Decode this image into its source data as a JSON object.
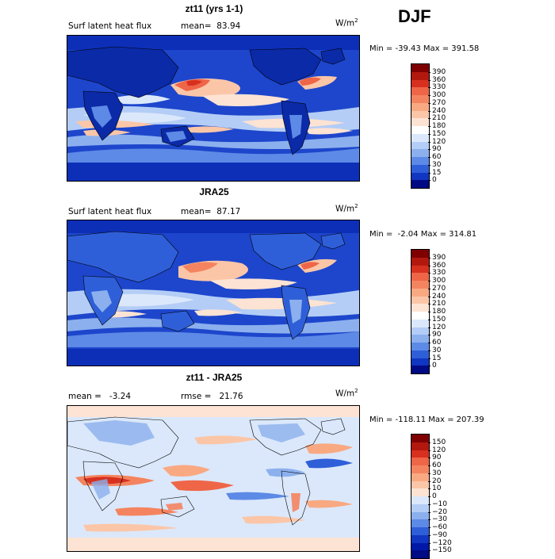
{
  "season": "DJF",
  "units_prefix": "W/m",
  "units_exp": "2",
  "panels": [
    {
      "title": "zt11 (yrs 1-1)",
      "left_label": "Surf latent heat flux",
      "right_label": "mean=  83.94",
      "minmax": "Min = -39.43 Max = 391.58",
      "palette": "abs"
    },
    {
      "title": "JRA25",
      "left_label": "Surf latent heat flux",
      "right_label": "mean=  87.17",
      "minmax": "Min =  -2.04 Max = 314.81",
      "palette": "abs"
    },
    {
      "title": "zt11 - JRA25",
      "left_label": "mean =   -3.24",
      "right_label": "rmse =   21.76",
      "minmax": "Min = -118.11 Max = 207.39",
      "palette": "diff"
    }
  ],
  "colorbars": {
    "abs": {
      "labels": [
        "390",
        "360",
        "330",
        "300",
        "270",
        "240",
        "210",
        "180",
        "150",
        "120",
        "90",
        "60",
        "30",
        "15",
        "0"
      ],
      "colors": [
        "#7f0000",
        "#b2180e",
        "#d7301f",
        "#ef6548",
        "#f4845f",
        "#f9a982",
        "#fbc6a8",
        "#fde3d3",
        "#ffffff",
        "#dbe8fb",
        "#b4cdf6",
        "#8cb0ee",
        "#5d8ae6",
        "#2f5fd8",
        "#1036c2",
        "#000a84"
      ]
    },
    "diff": {
      "labels": [
        "150",
        "120",
        "90",
        "60",
        "30",
        "20",
        "10",
        "0",
        "−10",
        "−20",
        "−30",
        "−60",
        "−90",
        "−120",
        "−150"
      ],
      "colors": [
        "#7f0000",
        "#b2180e",
        "#d7301f",
        "#ef6548",
        "#f4845f",
        "#f9a982",
        "#fbc6a8",
        "#fde3d3",
        "#dbe8fb",
        "#b4cdf6",
        "#8cb0ee",
        "#5d8ae6",
        "#2f5fd8",
        "#1036c2",
        "#0018a8",
        "#000a84"
      ]
    }
  }
}
